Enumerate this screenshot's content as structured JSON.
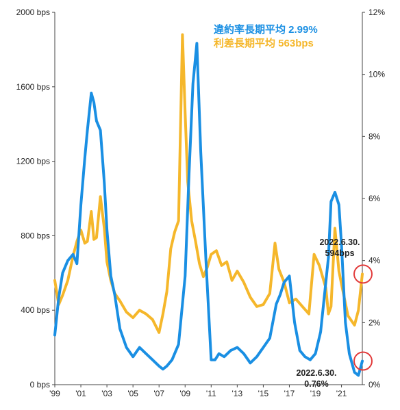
{
  "chart_data": {
    "type": "line",
    "title": "",
    "xlabel": "",
    "ylabel_left": "",
    "ylabel_right": "",
    "x_ticks": [
      "'99",
      "'01",
      "'03",
      "'05",
      "'07",
      "'09",
      "'11",
      "'13",
      "'15",
      "'17",
      "'19",
      "'21"
    ],
    "x_range": [
      1999.0,
      2022.6
    ],
    "y_left": {
      "range": [
        0,
        2000
      ],
      "ticks": [
        "0 bps",
        "400 bps",
        "800 bps",
        "1200 bps",
        "1600 bps",
        "2000 bps"
      ]
    },
    "y_right": {
      "range": [
        0,
        12
      ],
      "ticks": [
        "0%",
        "2%",
        "4%",
        "6%",
        "8%",
        "10%",
        "12%"
      ]
    },
    "grid": false,
    "legend_position": "top-right",
    "legend": [
      {
        "text": "違約率長期平均 2.99%",
        "color": "#1a8fe3"
      },
      {
        "text": "利差長期平均 563bps",
        "color": "#f5b72b"
      }
    ],
    "annotations": [
      {
        "line1": "2022.6.30.",
        "line2": "594bps"
      },
      {
        "line1": "2022.6.30.",
        "line2": "0.76%"
      }
    ],
    "series": [
      {
        "name": "利差",
        "axis": "left",
        "color": "#f5b72b",
        "x": [
          1999.0,
          1999.3,
          1999.6,
          2000.0,
          2000.4,
          2000.7,
          2001.0,
          2001.3,
          2001.5,
          2001.8,
          2002.0,
          2002.2,
          2002.5,
          2002.8,
          2003.0,
          2003.3,
          2003.6,
          2004.0,
          2004.5,
          2005.0,
          2005.5,
          2006.0,
          2006.5,
          2007.0,
          2007.3,
          2007.6,
          2007.9,
          2008.2,
          2008.5,
          2008.8,
          2009.0,
          2009.2,
          2009.5,
          2009.8,
          2010.1,
          2010.4,
          2010.7,
          2011.0,
          2011.4,
          2011.8,
          2012.2,
          2012.6,
          2013.0,
          2013.5,
          2014.0,
          2014.5,
          2015.0,
          2015.5,
          2015.9,
          2016.2,
          2016.6,
          2017.0,
          2017.5,
          2018.0,
          2018.5,
          2018.9,
          2019.3,
          2019.8,
          2020.0,
          2020.2,
          2020.5,
          2020.8,
          2021.0,
          2021.5,
          2022.0,
          2022.3,
          2022.6
        ],
        "values": [
          560,
          430,
          480,
          560,
          690,
          770,
          830,
          760,
          770,
          930,
          780,
          790,
          1010,
          840,
          660,
          560,
          490,
          450,
          390,
          360,
          400,
          380,
          350,
          280,
          380,
          500,
          730,
          820,
          880,
          1880,
          1460,
          1090,
          880,
          770,
          650,
          580,
          630,
          700,
          720,
          640,
          660,
          560,
          610,
          550,
          470,
          420,
          430,
          490,
          760,
          620,
          550,
          440,
          460,
          420,
          380,
          700,
          640,
          520,
          380,
          420,
          840,
          610,
          540,
          370,
          320,
          400,
          594
        ]
      },
      {
        "name": "違約率",
        "axis": "right",
        "color": "#1a8fe3",
        "x": [
          1999.0,
          1999.3,
          1999.6,
          2000.0,
          2000.4,
          2000.7,
          2001.0,
          2001.3,
          2001.5,
          2001.8,
          2002.0,
          2002.2,
          2002.5,
          2002.8,
          2003.0,
          2003.3,
          2003.6,
          2004.0,
          2004.5,
          2005.0,
          2005.5,
          2006.0,
          2006.5,
          2007.0,
          2007.3,
          2007.6,
          2008.0,
          2008.5,
          2009.0,
          2009.3,
          2009.6,
          2009.9,
          2010.2,
          2010.6,
          2011.0,
          2011.3,
          2011.6,
          2012.0,
          2012.5,
          2013.0,
          2013.5,
          2014.0,
          2014.5,
          2015.0,
          2015.5,
          2016.0,
          2016.3,
          2016.6,
          2017.0,
          2017.4,
          2017.8,
          2018.2,
          2018.6,
          2019.0,
          2019.4,
          2019.7,
          2020.0,
          2020.2,
          2020.5,
          2020.8,
          2021.0,
          2021.3,
          2021.6,
          2022.0,
          2022.3,
          2022.6
        ],
        "values": [
          1.6,
          2.8,
          3.6,
          4.0,
          4.2,
          3.9,
          5.8,
          7.3,
          8.2,
          9.4,
          9.1,
          8.5,
          8.2,
          6.5,
          5.0,
          3.5,
          2.9,
          1.8,
          1.2,
          0.9,
          1.2,
          1.0,
          0.8,
          0.6,
          0.5,
          0.6,
          0.8,
          1.3,
          3.5,
          6.8,
          9.7,
          11.0,
          7.5,
          4.0,
          0.8,
          0.8,
          1.0,
          0.9,
          1.1,
          1.2,
          1.0,
          0.7,
          0.9,
          1.2,
          1.5,
          2.6,
          2.9,
          3.3,
          3.5,
          2.0,
          1.1,
          0.9,
          0.8,
          1.0,
          1.7,
          2.9,
          4.1,
          5.9,
          6.2,
          5.8,
          4.5,
          2.0,
          1.0,
          0.4,
          0.3,
          0.76
        ]
      }
    ]
  }
}
